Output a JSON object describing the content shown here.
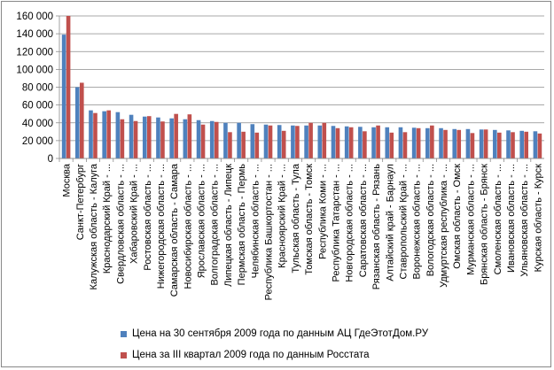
{
  "chart_data": {
    "type": "bar",
    "ylim": [
      0,
      160000
    ],
    "yticks": [
      "0",
      "20 000",
      "40 000",
      "60 000",
      "80 000",
      "100 000",
      "120 000",
      "140 000",
      "160 000"
    ],
    "grid": true,
    "legend_position": "bottom",
    "categories": [
      "Москва",
      "Санкт-Петербург",
      "Калужская область - Калуга",
      "Краснодарский Край - ...",
      "Свердловская область - ...",
      "Хабаровский Край - ...",
      "Ростовская область - ...",
      "Нижегородская область - ...",
      "Самарская область - Самара",
      "Новосибирская область - ...",
      "Ярославская область - ...",
      "Волгоградская область - ...",
      "Липецкая область - Липецк",
      "Пермская область - Пермь",
      "Челябинская область - ...",
      "Республика Башкортостан - ...",
      "Красноярский Край - ...",
      "Тульская область - Тула",
      "Томская область - Томск",
      "Республика Коми - ...",
      "Республика Татарстан - ...",
      "Новгородская область - ...",
      "Саратовская область - ...",
      "Рязанская область - Рязань",
      "Алтайский край - Барнаул",
      "Ставропольский Край - ...",
      "Воронежская область - ...",
      "Вологодская область - ...",
      "Удмуртская республика - ...",
      "Омская область - Омск",
      "Мурманская область - ...",
      "Брянская область - Брянск",
      "Смоленская область - ...",
      "Ивановская область - ...",
      "Ульяновская область - ...",
      "Курская область - Курск"
    ],
    "series": [
      {
        "name": "Цена на 30 сентября 2009 года по данным АЦ ГдеЭтотДом.РУ",
        "color": "#4F81BD",
        "values": [
          139000,
          80000,
          54000,
          53000,
          52000,
          49000,
          47000,
          46000,
          45000,
          44000,
          43000,
          42000,
          40000,
          40000,
          38500,
          38000,
          37500,
          37000,
          37000,
          37000,
          36500,
          36000,
          35500,
          35000,
          35000,
          35000,
          34500,
          34000,
          34000,
          33000,
          33000,
          32500,
          32000,
          31500,
          31000,
          30500
        ]
      },
      {
        "name": "Цена за III квартал  2009 года по данным Росстата",
        "color": "#C0504D",
        "values": [
          160000,
          85000,
          51000,
          54000,
          44000,
          42000,
          47500,
          41500,
          50000,
          49500,
          38000,
          41000,
          29500,
          30000,
          29000,
          37000,
          31000,
          36500,
          40000,
          40000,
          34000,
          35000,
          30500,
          37000,
          29000,
          29500,
          34000,
          37000,
          32000,
          32000,
          28500,
          32500,
          29000,
          29500,
          30000,
          28000
        ]
      }
    ]
  }
}
